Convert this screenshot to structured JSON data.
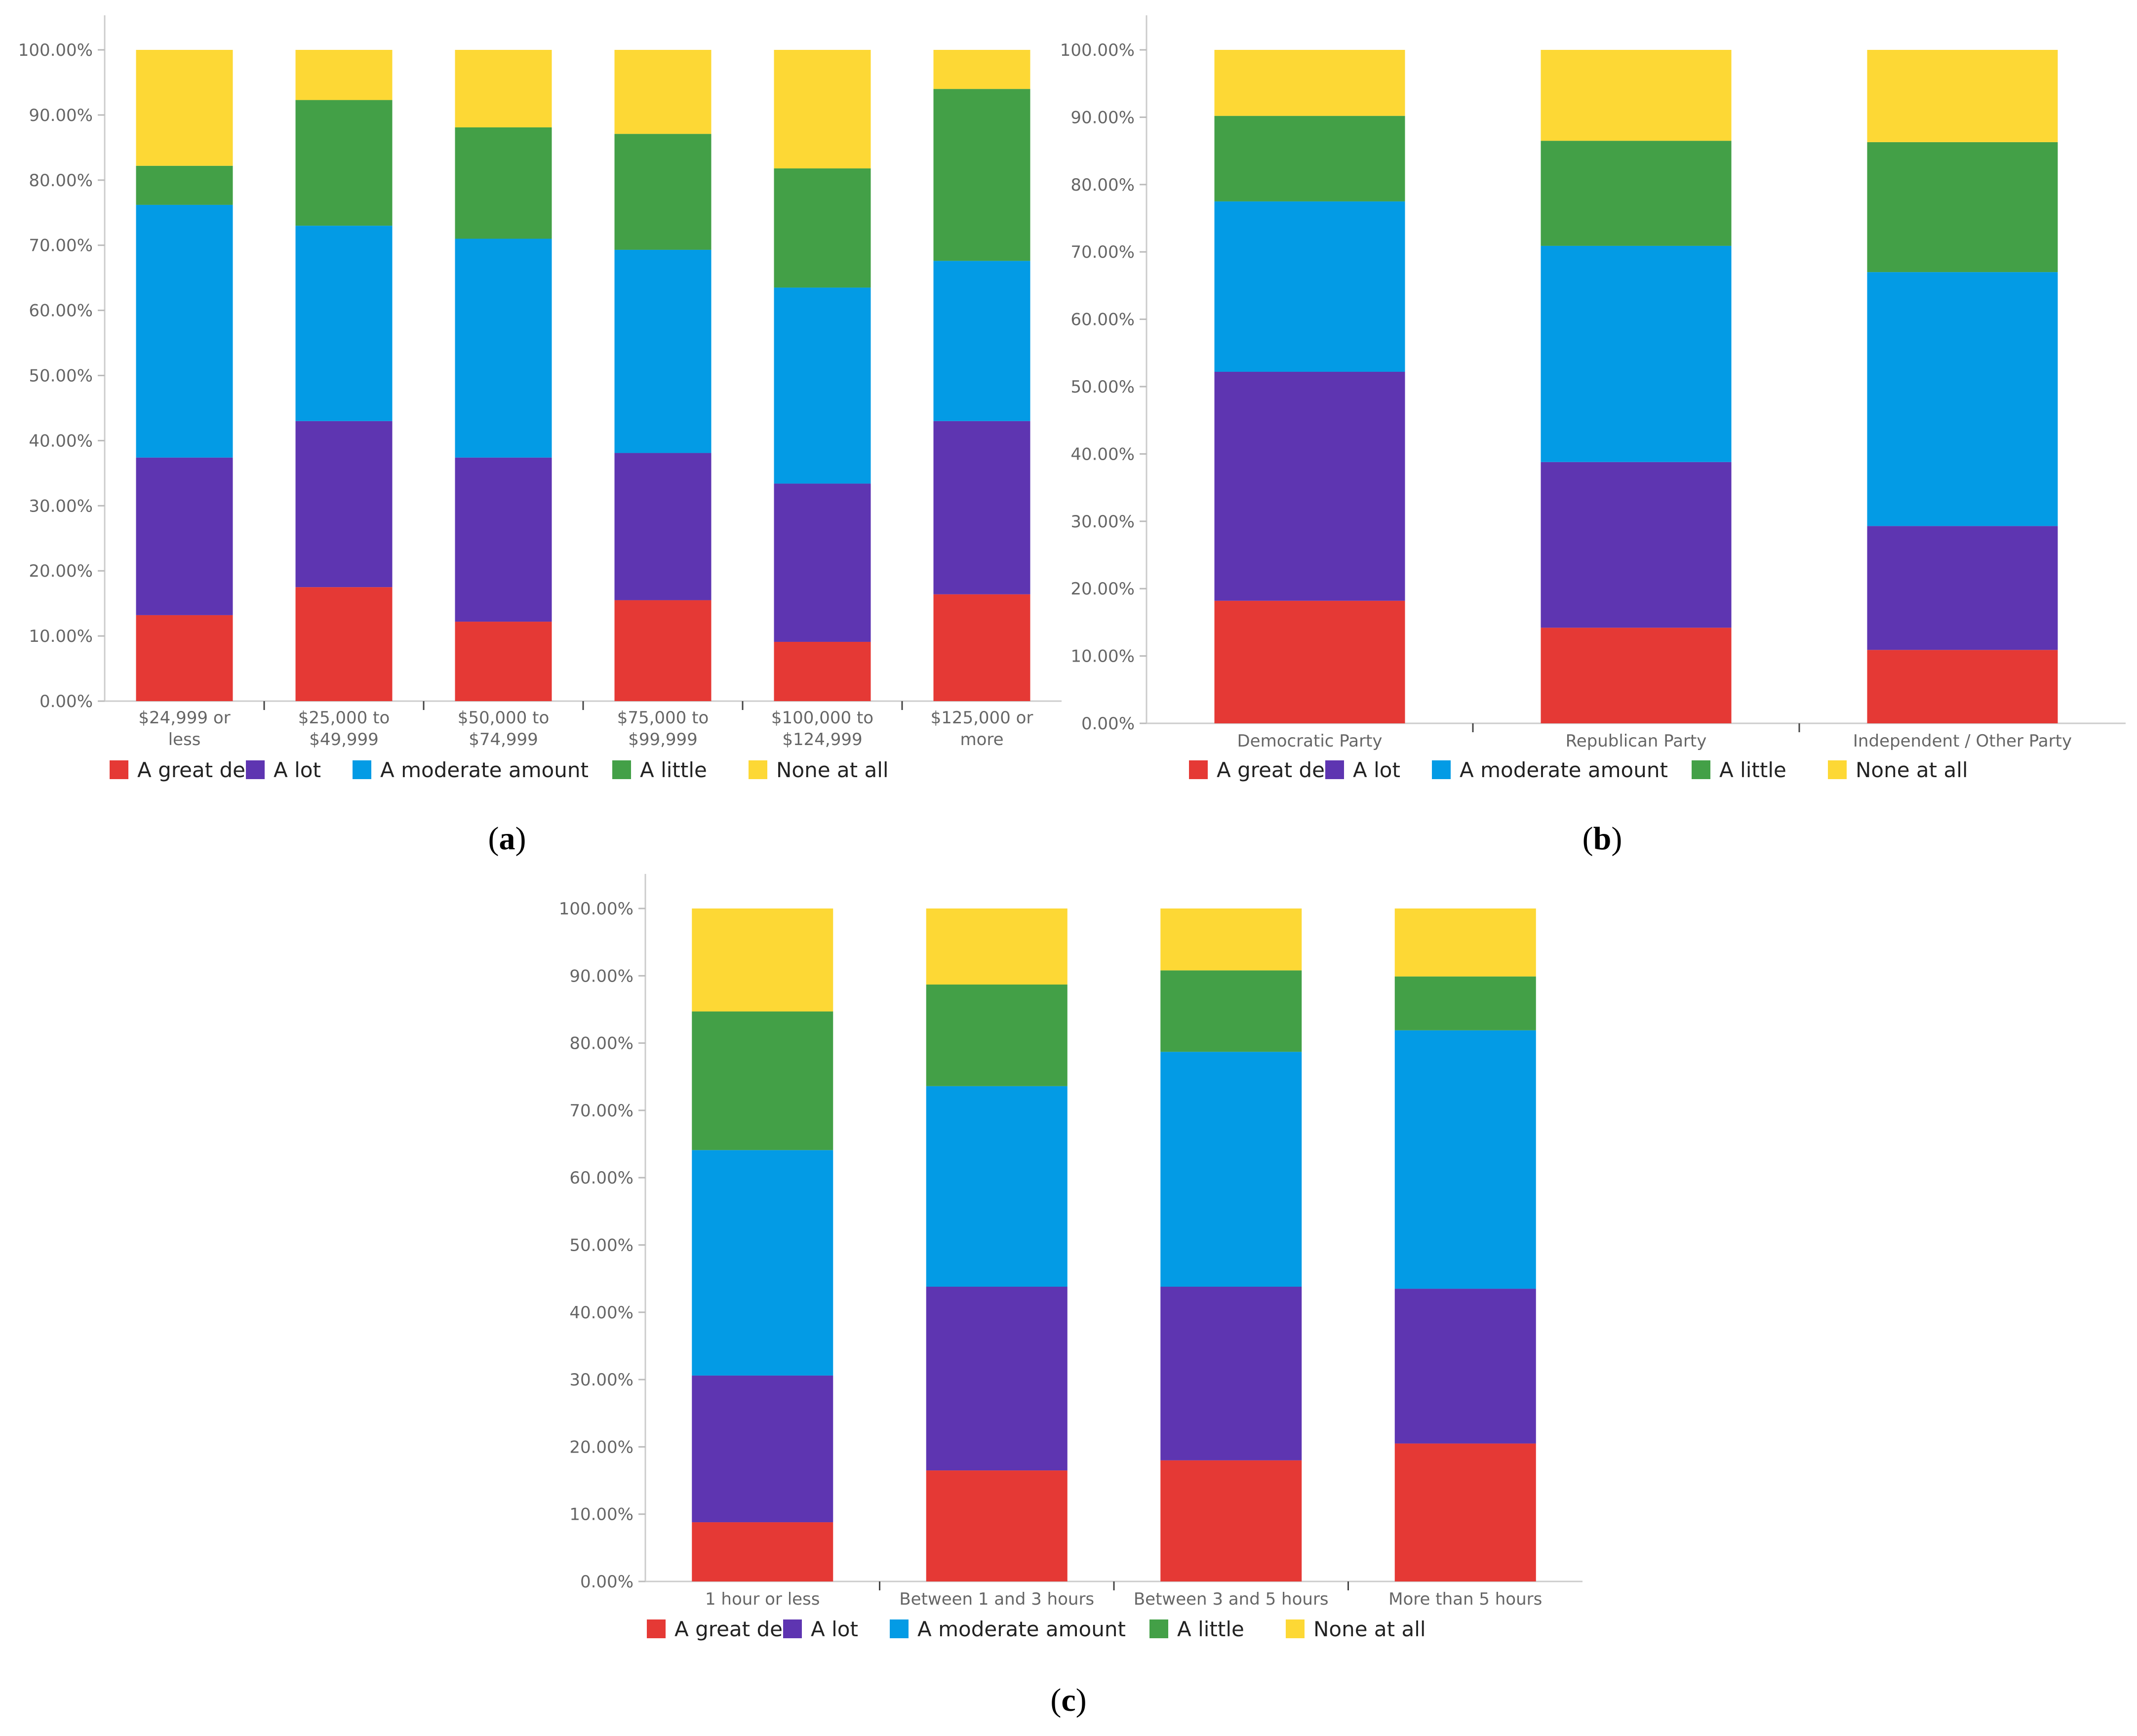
{
  "legend": [
    {
      "name": "A great deal",
      "color": "#E53935"
    },
    {
      "name": "A lot",
      "color": "#5E35B1"
    },
    {
      "name": "A moderate amount",
      "color": "#039BE5"
    },
    {
      "name": "A little",
      "color": "#43A047"
    },
    {
      "name": "None at all",
      "color": "#FDD835"
    }
  ],
  "chart_data": [
    {
      "type": "bar",
      "stacked": true,
      "panel_label": "a",
      "y_ticks": [
        "0.00%",
        "10.00%",
        "20.00%",
        "30.00%",
        "40.00%",
        "50.00%",
        "60.00%",
        "70.00%",
        "80.00%",
        "90.00%",
        "100.00%"
      ],
      "ylim": [
        0,
        100
      ],
      "categories": [
        [
          "$24,999 or",
          "less"
        ],
        [
          "$25,000 to",
          "$49,999"
        ],
        [
          "$50,000 to",
          "$74,999"
        ],
        [
          "$75,000 to",
          "$99,999"
        ],
        [
          "$100,000 to",
          "$124,999"
        ],
        [
          "$125,000 or",
          "more"
        ]
      ],
      "series": [
        {
          "name": "A great deal",
          "values": [
            13.2,
            17.5,
            12.2,
            15.5,
            9.1,
            16.4
          ]
        },
        {
          "name": "A lot",
          "values": [
            24.2,
            25.5,
            25.2,
            22.6,
            24.3,
            26.6
          ]
        },
        {
          "name": "A moderate amount",
          "values": [
            38.8,
            30.0,
            33.6,
            31.2,
            30.1,
            24.6
          ]
        },
        {
          "name": "A little",
          "values": [
            6.0,
            19.3,
            17.1,
            17.8,
            18.3,
            26.4
          ]
        },
        {
          "name": "None at all",
          "values": [
            17.8,
            7.7,
            11.9,
            12.9,
            18.2,
            6.0
          ]
        }
      ]
    },
    {
      "type": "bar",
      "stacked": true,
      "panel_label": "b",
      "y_ticks": [
        "0.00%",
        "10.00%",
        "20.00%",
        "30.00%",
        "40.00%",
        "50.00%",
        "60.00%",
        "70.00%",
        "80.00%",
        "90.00%",
        "100.00%"
      ],
      "ylim": [
        0,
        100
      ],
      "categories": [
        [
          "Democratic Party"
        ],
        [
          "Republican Party"
        ],
        [
          "Independent / Other Party"
        ]
      ],
      "series": [
        {
          "name": "A great deal",
          "values": [
            18.2,
            14.2,
            10.9
          ]
        },
        {
          "name": "A lot",
          "values": [
            34.0,
            24.6,
            18.4
          ]
        },
        {
          "name": "A moderate amount",
          "values": [
            25.3,
            32.1,
            37.7
          ]
        },
        {
          "name": "A little",
          "values": [
            12.7,
            15.6,
            19.3
          ]
        },
        {
          "name": "None at all",
          "values": [
            9.8,
            13.5,
            13.7
          ]
        }
      ]
    },
    {
      "type": "bar",
      "stacked": true,
      "panel_label": "c",
      "y_ticks": [
        "0.00%",
        "10.00%",
        "20.00%",
        "30.00%",
        "40.00%",
        "50.00%",
        "60.00%",
        "70.00%",
        "80.00%",
        "90.00%",
        "100.00%"
      ],
      "ylim": [
        0,
        100
      ],
      "categories": [
        [
          "1 hour or less"
        ],
        [
          "Between 1 and 3 hours"
        ],
        [
          "Between 3 and 5 hours"
        ],
        [
          "More than 5 hours"
        ]
      ],
      "series": [
        {
          "name": "A great deal",
          "values": [
            8.8,
            16.5,
            18.0,
            20.5
          ]
        },
        {
          "name": "A lot",
          "values": [
            21.8,
            27.3,
            25.8,
            23.0
          ]
        },
        {
          "name": "A moderate amount",
          "values": [
            33.5,
            29.8,
            34.9,
            38.4
          ]
        },
        {
          "name": "A little",
          "values": [
            20.6,
            15.1,
            12.1,
            8.0
          ]
        },
        {
          "name": "None at all",
          "values": [
            15.3,
            11.3,
            9.2,
            10.1
          ]
        }
      ]
    }
  ]
}
